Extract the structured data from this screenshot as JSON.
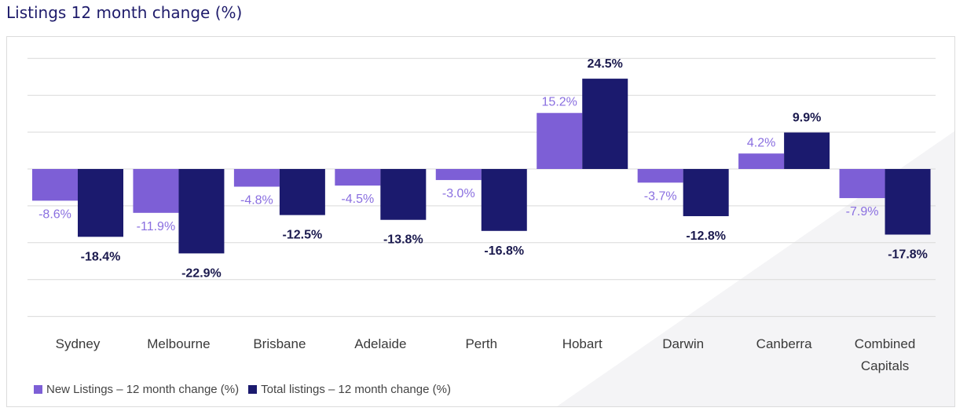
{
  "title": "Listings 12 month change (%)",
  "colors": {
    "new": "#7d5fd6",
    "total": "#1b1a6e",
    "grid": "#d9d9d9",
    "label_new": "#8a6fe0",
    "label_total": "#1b1a4e"
  },
  "chart_data": {
    "type": "bar",
    "title": "Listings 12 month change (%)",
    "categories": [
      "Sydney",
      "Melbourne",
      "Brisbane",
      "Adelaide",
      "Perth",
      "Hobart",
      "Darwin",
      "Canberra",
      "Combined Capitals"
    ],
    "series": [
      {
        "name": "New Listings – 12 month change (%)",
        "values": [
          -8.6,
          -11.9,
          -4.8,
          -4.5,
          -3.0,
          15.2,
          -3.7,
          4.2,
          -7.9
        ]
      },
      {
        "name": "Total listings – 12 month change (%)",
        "values": [
          -18.4,
          -22.9,
          -12.5,
          -13.8,
          -16.8,
          24.5,
          -12.8,
          9.9,
          -17.8
        ]
      }
    ],
    "data_labels": {
      "new": [
        "-8.6%",
        "-11.9%",
        "-4.8%",
        "-4.5%",
        "-3.0%",
        "15.2%",
        "-3.7%",
        "4.2%",
        "-7.9%"
      ],
      "total": [
        "-18.4%",
        "-22.9%",
        "-12.5%",
        "-13.8%",
        "-16.8%",
        "24.5%",
        "-12.8%",
        "9.9%",
        "-17.8%"
      ]
    },
    "ylim": [
      -40,
      30
    ],
    "grid": true,
    "legend_position": "bottom-left"
  },
  "legend": {
    "new_label": "New Listings – 12 month change (%)",
    "total_label": "Total listings – 12 month change (%)"
  }
}
